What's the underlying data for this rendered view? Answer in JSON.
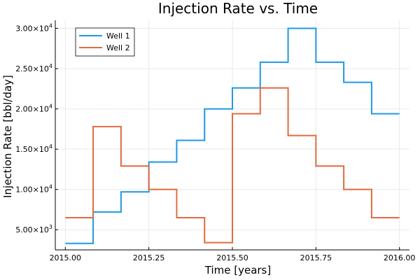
{
  "chart_data": {
    "type": "line",
    "title": "Injection Rate vs. Time",
    "xlabel": "Time [years]",
    "ylabel": "Injection Rate [bbl/day]",
    "xlim": [
      2014.97,
      2016.03
    ],
    "ylim": [
      2500,
      31000
    ],
    "x_ticks": [
      2015.0,
      2015.25,
      2015.5,
      2015.75,
      2016.0
    ],
    "x_tick_labels": [
      "2015.00",
      "2015.25",
      "2015.50",
      "2015.75",
      "2016.00"
    ],
    "y_ticks": [
      5000,
      10000,
      15000,
      20000,
      25000,
      30000
    ],
    "y_tick_mantissas": [
      "5.00",
      "1.00",
      "1.50",
      "2.00",
      "2.50",
      "3.00"
    ],
    "y_tick_exponents": [
      "3",
      "4",
      "4",
      "4",
      "4",
      "4"
    ],
    "grid": true,
    "legend_position": "top-left",
    "step_style": "post",
    "x": [
      2015.0,
      2015.0833,
      2015.1667,
      2015.25,
      2015.3333,
      2015.4167,
      2015.5,
      2015.5833,
      2015.6667,
      2015.75,
      2015.8333,
      2015.9167,
      2016.0
    ],
    "series": [
      {
        "name": "Well 1",
        "color": "#1f9ae0",
        "values": [
          3300,
          7200,
          9700,
          13400,
          16100,
          20000,
          22600,
          25800,
          30000,
          25800,
          23300,
          19400,
          19400
        ]
      },
      {
        "name": "Well 2",
        "color": "#e06b3f",
        "values": [
          6500,
          17800,
          12900,
          10000,
          6500,
          3400,
          19400,
          22600,
          16700,
          12900,
          10000,
          6500,
          6500
        ]
      }
    ]
  }
}
